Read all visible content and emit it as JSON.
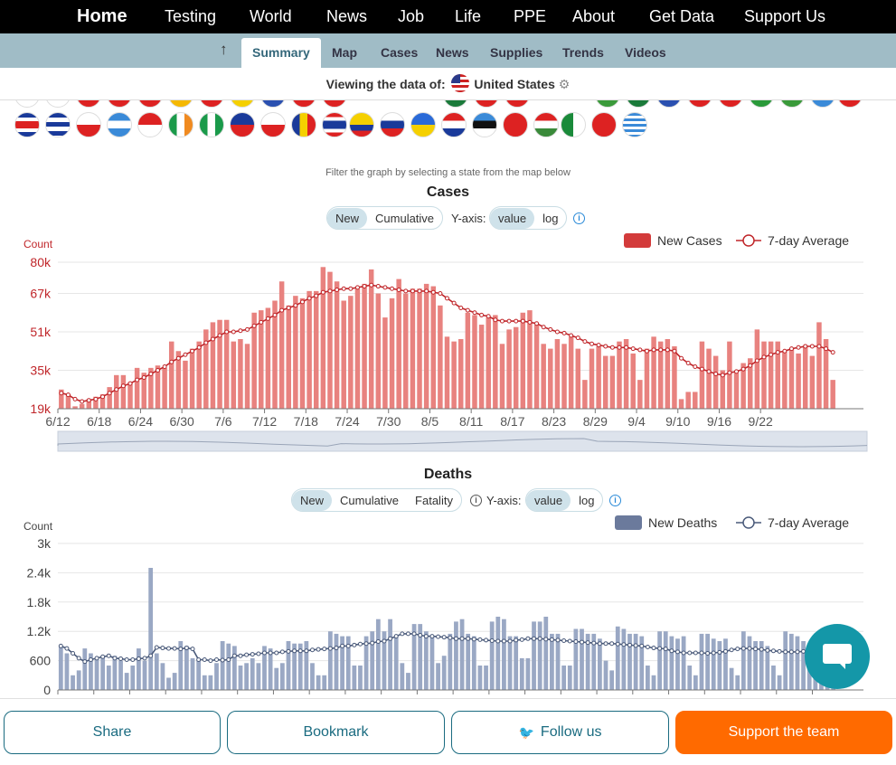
{
  "nav": {
    "home": "Home",
    "items": [
      "Testing",
      "World",
      "News",
      "Job",
      "Life",
      "PPE",
      "About",
      "Get Data",
      "Support Us"
    ]
  },
  "subnav": {
    "up_icon": "up-arrow-icon",
    "items": [
      "Summary",
      "Map",
      "Cases",
      "News",
      "Supplies",
      "Trends",
      "Videos"
    ],
    "active": "Summary"
  },
  "viewing": {
    "prefix": "Viewing the data of:",
    "country": "United States",
    "gear_icon": "gear-icon"
  },
  "filter_hint": "Filter the graph by selecting a state from the map below",
  "cases_panel": {
    "title": "Cases",
    "toggle": [
      "New",
      "Cumulative"
    ],
    "toggle_active": "New",
    "yaxis_label": "Y-axis:",
    "scale": [
      "value",
      "log"
    ],
    "scale_active": "value",
    "info_icon": "info-icon"
  },
  "deaths_panel": {
    "title": "Deaths",
    "toggle": [
      "New",
      "Cumulative",
      "Fatality"
    ],
    "toggle_active": "New",
    "yaxis_label": "Y-axis:",
    "scale": [
      "value",
      "log"
    ],
    "scale_active": "value",
    "info_icon": "info-icon"
  },
  "buttons": {
    "share": "Share",
    "bookmark": "Bookmark",
    "follow": "Follow us",
    "support": "Support the team"
  },
  "colors": {
    "cases_bar": "#e8827f",
    "cases_line": "#c0262a",
    "deaths_bar": "#9aa8c4",
    "deaths_line": "#4a5a7a",
    "support": "#ff6a00",
    "chat": "#1497a8"
  },
  "chart_data": [
    {
      "type": "bar",
      "title": "Cases",
      "ylabel": "Count",
      "ylim": [
        19000,
        80000
      ],
      "y_ticks": [
        "19k",
        "35k",
        "51k",
        "67k",
        "80k"
      ],
      "y_tick_values": [
        19000,
        35000,
        51000,
        67000,
        80000
      ],
      "x_ticks": [
        "6/12",
        "6/18",
        "6/24",
        "6/30",
        "7/6",
        "7/12",
        "7/18",
        "7/24",
        "7/30",
        "8/5",
        "8/11",
        "8/17",
        "8/23",
        "8/29",
        "9/4",
        "9/10",
        "9/16",
        "9/22"
      ],
      "start_date": "6/12",
      "series": [
        {
          "name": "New Cases",
          "values": [
            27000,
            25000,
            20000,
            21000,
            23000,
            24000,
            25000,
            28000,
            33000,
            33000,
            30000,
            36000,
            34000,
            36000,
            37000,
            36000,
            47000,
            43000,
            39000,
            44000,
            47000,
            52000,
            55000,
            56000,
            56000,
            47000,
            48000,
            46000,
            59000,
            60000,
            61000,
            64000,
            72000,
            62000,
            66000,
            65000,
            68000,
            68000,
            78000,
            76000,
            72000,
            64000,
            66000,
            69000,
            71000,
            77000,
            67000,
            57000,
            65000,
            73000,
            67000,
            69000,
            69000,
            71000,
            70000,
            62000,
            49000,
            47000,
            48000,
            59000,
            58000,
            54000,
            57000,
            58000,
            46000,
            52000,
            53000,
            59000,
            60000,
            54000,
            46000,
            44000,
            48000,
            46000,
            49000,
            44000,
            31000,
            44000,
            45000,
            41000,
            41000,
            47000,
            48000,
            42000,
            31000,
            44000,
            49000,
            47000,
            48000,
            45000,
            23000,
            26000,
            26000,
            47000,
            44000,
            41000,
            35000,
            47000,
            34000,
            38000,
            40000,
            52000,
            47000,
            47000,
            47000,
            43000,
            44000,
            42000,
            45000,
            41000,
            55000,
            48000,
            31000
          ]
        },
        {
          "name": "7-day Average",
          "values": [
            25500,
            24800,
            23000,
            22000,
            22500,
            23000,
            24000,
            25500,
            27000,
            28500,
            29500,
            31000,
            32000,
            33500,
            35000,
            36500,
            38500,
            40000,
            41500,
            43000,
            44500,
            46500,
            48000,
            49500,
            51000,
            51000,
            51500,
            52000,
            53500,
            55000,
            56500,
            58000,
            60000,
            61000,
            62000,
            63500,
            65000,
            66000,
            67500,
            68000,
            68500,
            69000,
            69000,
            69500,
            70000,
            70500,
            70000,
            69500,
            69000,
            68500,
            68000,
            68000,
            68000,
            68000,
            67500,
            67000,
            65000,
            63000,
            61000,
            60000,
            59000,
            58000,
            57500,
            56000,
            55500,
            55500,
            55500,
            55500,
            55000,
            54500,
            53000,
            52000,
            51000,
            50500,
            49500,
            48500,
            47000,
            46000,
            45500,
            45000,
            44500,
            44500,
            44500,
            44000,
            43500,
            43000,
            43500,
            43500,
            43500,
            43000,
            40000,
            38000,
            36500,
            35500,
            34500,
            33500,
            33000,
            34000,
            34500,
            35500,
            37000,
            39000,
            40500,
            41500,
            42500,
            43000,
            44000,
            44500,
            45000,
            45000,
            45000,
            44000,
            42500
          ]
        }
      ],
      "legend": [
        "New Cases",
        "7-day Average"
      ],
      "legend_position": "top-right",
      "grid": true
    },
    {
      "type": "bar",
      "title": "Deaths",
      "ylabel": "Count",
      "ylim": [
        0,
        3000
      ],
      "y_ticks": [
        "0",
        "600",
        "1.2k",
        "1.8k",
        "2.4k",
        "3k"
      ],
      "y_tick_values": [
        0,
        600,
        1200,
        1800,
        2400,
        3000
      ],
      "series": [
        {
          "name": "New Deaths",
          "values": [
            900,
            750,
            300,
            400,
            850,
            750,
            650,
            700,
            500,
            700,
            600,
            350,
            500,
            850,
            600,
            2500,
            750,
            550,
            250,
            350,
            1000,
            900,
            650,
            600,
            300,
            300,
            550,
            1000,
            950,
            900,
            500,
            550,
            650,
            550,
            900,
            850,
            450,
            550,
            1000,
            950,
            950,
            1000,
            550,
            300,
            300,
            1200,
            1150,
            1100,
            1100,
            500,
            500,
            1100,
            1200,
            1450,
            1200,
            1450,
            1100,
            550,
            350,
            1350,
            1350,
            1200,
            1100,
            550,
            700,
            1150,
            1400,
            1450,
            1150,
            1100,
            500,
            500,
            1400,
            1500,
            1450,
            1100,
            1100,
            650,
            650,
            1400,
            1400,
            1500,
            1150,
            1150,
            500,
            500,
            1250,
            1250,
            1150,
            1150,
            1050,
            600,
            400,
            1300,
            1250,
            1150,
            1150,
            1100,
            500,
            300,
            1200,
            1200,
            1100,
            1050,
            1100,
            500,
            300,
            1150,
            1150,
            1050,
            1000,
            1050,
            450,
            300,
            1200,
            1100,
            1000,
            1000,
            900,
            500,
            300,
            1200,
            1150,
            1100,
            1000,
            850,
            500,
            300,
            1200,
            1100
          ]
        },
        {
          "name": "7-day Average",
          "values": [
            900,
            850,
            750,
            650,
            580,
            620,
            650,
            680,
            700,
            650,
            640,
            620,
            620,
            640,
            650,
            700,
            870,
            860,
            850,
            850,
            840,
            860,
            840,
            620,
            620,
            600,
            620,
            610,
            620,
            700,
            700,
            720,
            730,
            740,
            760,
            760,
            760,
            780,
            790,
            800,
            800,
            800,
            820,
            830,
            840,
            850,
            860,
            900,
            900,
            920,
            940,
            950,
            960,
            990,
            1000,
            1050,
            1100,
            1150,
            1150,
            1150,
            1120,
            1100,
            1100,
            1090,
            1080,
            1070,
            1050,
            1050,
            1050,
            1040,
            1030,
            1020,
            1010,
            1000,
            1000,
            1000,
            1020,
            1030,
            1050,
            1050,
            1050,
            1040,
            1030,
            1020,
            1010,
            1000,
            990,
            980,
            970,
            960,
            950,
            950,
            950,
            940,
            930,
            920,
            910,
            900,
            880,
            860,
            850,
            840,
            800,
            780,
            760,
            760,
            760,
            760,
            750,
            760,
            770,
            790,
            820,
            840,
            850,
            850,
            840,
            830,
            810,
            800,
            790,
            780,
            780,
            780,
            790,
            800
          ]
        }
      ],
      "legend": [
        "New Deaths",
        "7-day Average"
      ],
      "legend_position": "top-right",
      "grid": true
    }
  ]
}
